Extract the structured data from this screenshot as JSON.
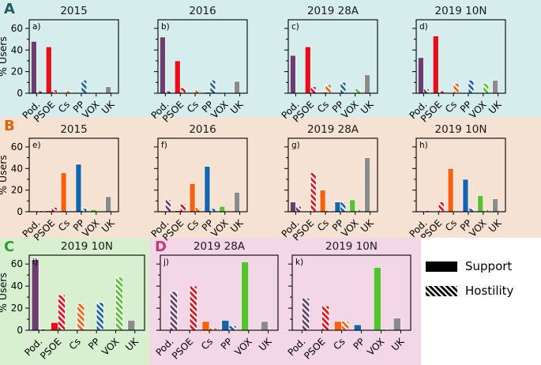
{
  "figure": {
    "ylabel": "% Users",
    "yticks": [
      0,
      20,
      40,
      60
    ],
    "minor_yticks": [
      10,
      30,
      50
    ],
    "ylim": [
      0,
      68
    ],
    "categories": [
      "Pod.",
      "PSOE",
      "Cs",
      "PP",
      "VOX",
      "UK"
    ],
    "party_colors": {
      "Pod.": "#6b3d70",
      "PSOE": "#e60e1a",
      "Cs": "#f95f0f",
      "PP": "#1565ae",
      "VOX": "#55c22e",
      "UK": "#8b8b8b"
    },
    "title_color": "#1a1a1a",
    "axis_color": "#000000"
  },
  "panels": [
    {
      "letter": "A",
      "letter_color": "#1a5e63",
      "bg": "#d5eded"
    },
    {
      "letter": "B",
      "letter_color": "#e2650e",
      "bg": "#f6e2d2"
    },
    {
      "letter": "C",
      "letter_color": "#2f9c36",
      "bg": "#d8efd0"
    },
    {
      "letter": "D",
      "letter_color": "#c23a7c",
      "bg": "#f3d7e6"
    }
  ],
  "legend": {
    "support_label": "Support",
    "hostility_label": "Hostility",
    "swatch_color": "#000000"
  },
  "chart_data": {
    "type": "bar",
    "categories": [
      "Pod.",
      "PSOE",
      "Cs",
      "PP",
      "VOX",
      "UK"
    ],
    "ylabel": "% Users",
    "ylim": [
      0,
      68
    ],
    "yticks": [
      0,
      20,
      40,
      60
    ],
    "legend": [
      "Support",
      "Hostility"
    ],
    "charts": [
      {
        "panel": "A",
        "tag": "a)",
        "title": "2015",
        "series": [
          {
            "name": "Support",
            "values": [
              48,
              43,
              0,
              0,
              0,
              6
            ]
          },
          {
            "name": "Hostility",
            "values": [
              2,
              3,
              2,
              12,
              0,
              0
            ]
          }
        ]
      },
      {
        "panel": "A",
        "tag": "b)",
        "title": "2016",
        "series": [
          {
            "name": "Support",
            "values": [
              52,
              30,
              0,
              1,
              0,
              11
            ]
          },
          {
            "name": "Hostility",
            "values": [
              2,
              5,
              3,
              12,
              0,
              0
            ]
          }
        ]
      },
      {
        "panel": "A",
        "tag": "c)",
        "title": "2019 28A",
        "series": [
          {
            "name": "Support",
            "values": [
              35,
              43,
              1,
              0,
              0,
              17
            ]
          },
          {
            "name": "Hostility",
            "values": [
              0,
              6,
              8,
              10,
              4,
              0
            ]
          }
        ]
      },
      {
        "panel": "A",
        "tag": "d)",
        "title": "2019 10N",
        "series": [
          {
            "name": "Support",
            "values": [
              33,
              53,
              0,
              0,
              0,
              12
            ]
          },
          {
            "name": "Hostility",
            "values": [
              4,
              2,
              9,
              12,
              9,
              0
            ]
          }
        ]
      },
      {
        "panel": "B",
        "tag": "e)",
        "title": "2015",
        "series": [
          {
            "name": "Support",
            "values": [
              0,
              1,
              36,
              44,
              2,
              14
            ]
          },
          {
            "name": "Hostility",
            "values": [
              1,
              4,
              0,
              3,
              0,
              0
            ]
          }
        ]
      },
      {
        "panel": "B",
        "tag": "f)",
        "title": "2016",
        "series": [
          {
            "name": "Support",
            "values": [
              0,
              1,
              26,
              42,
              5,
              18
            ]
          },
          {
            "name": "Hostility",
            "values": [
              11,
              7,
              4,
              3,
              0,
              0
            ]
          }
        ]
      },
      {
        "panel": "B",
        "tag": "g)",
        "title": "2019 28A",
        "series": [
          {
            "name": "Support",
            "values": [
              9,
              0,
              20,
              9,
              11,
              50
            ]
          },
          {
            "name": "Hostility",
            "values": [
              5,
              36,
              1,
              9,
              2,
              0
            ]
          }
        ]
      },
      {
        "panel": "B",
        "tag": "h)",
        "title": "2019 10N",
        "series": [
          {
            "name": "Support",
            "values": [
              0,
              0,
              40,
              30,
              15,
              12
            ]
          },
          {
            "name": "Hostility",
            "values": [
              1,
              9,
              0,
              3,
              2,
              0
            ]
          }
        ]
      },
      {
        "panel": "C",
        "tag": "i)",
        "title": "2019 10N",
        "series": [
          {
            "name": "Support",
            "values": [
              64,
              7,
              0,
              0,
              0,
              9
            ]
          },
          {
            "name": "Hostility",
            "values": [
              1,
              32,
              24,
              25,
              48,
              0
            ]
          }
        ]
      },
      {
        "panel": "D",
        "tag": "j)",
        "title": "2019 28A",
        "series": [
          {
            "name": "Support",
            "values": [
              0,
              0,
              8,
              9,
              62,
              8
            ]
          },
          {
            "name": "Hostility",
            "values": [
              35,
              40,
              2,
              4,
              0,
              0
            ]
          }
        ]
      },
      {
        "panel": "D",
        "tag": "k)",
        "title": "2019 10N",
        "series": [
          {
            "name": "Support",
            "values": [
              0,
              0,
              8,
              5,
              57,
              11
            ]
          },
          {
            "name": "Hostility",
            "values": [
              29,
              22,
              8,
              0,
              1,
              0
            ]
          }
        ]
      }
    ]
  }
}
